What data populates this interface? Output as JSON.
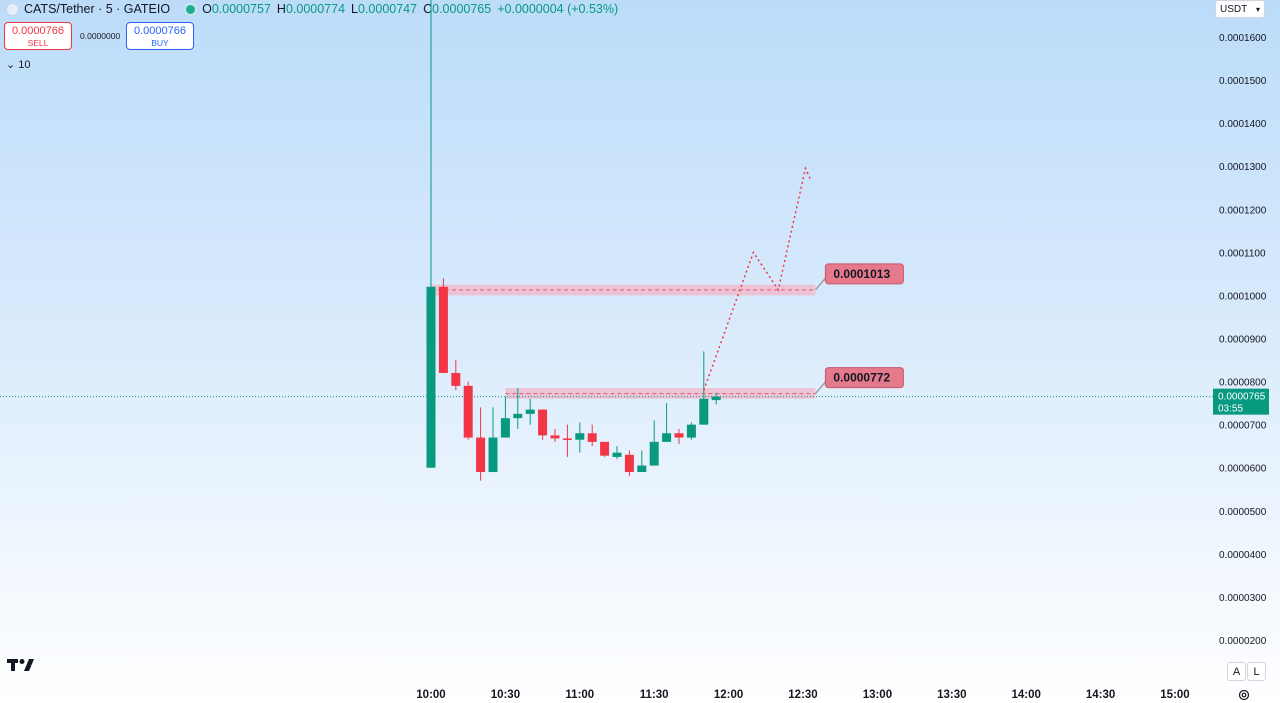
{
  "header": {
    "symbol_title": "CATS/Tether · 5 · GATEIO",
    "ohlc": {
      "o": "0.0000757",
      "h": "0.0000774",
      "l": "0.0000747",
      "c": "0.0000765",
      "change": "+0.0000004 (+0.53%)"
    },
    "sell_price": "0.0000766",
    "sell_label": "SELL",
    "buy_price": "0.0000766",
    "buy_label": "BUY",
    "spread": "0.0000000",
    "indicators_count": "10",
    "currency": "USDT"
  },
  "price_axis": {
    "ticks": [
      "0.0001600",
      "0.0001500",
      "0.0001400",
      "0.0001300",
      "0.0001200",
      "0.0001100",
      "0.0001000",
      "0.0000900",
      "0.0000800",
      "0.0000700",
      "0.0000600",
      "0.0000500",
      "0.0000400",
      "0.0000300",
      "0.0000200"
    ],
    "last_price": "0.0000765",
    "countdown": "03:55"
  },
  "time_axis": {
    "ticks": [
      "10:00",
      "10:30",
      "11:00",
      "11:30",
      "12:00",
      "12:30",
      "13:00",
      "13:30",
      "14:00",
      "14:30",
      "15:00"
    ]
  },
  "scale_buttons": {
    "auto": "A",
    "log": "L"
  },
  "colors": {
    "up": "#089981",
    "down": "#f23645",
    "zone": "#f2b6c8",
    "label_bg": "#e57a8d",
    "projection": "#f23645"
  },
  "chart_data": {
    "type": "candlestick",
    "title": "CATS/Tether · 5 · GATEIO",
    "ylim": [
      1.7e-05,
      0.00017
    ],
    "candles": [
      {
        "t": "10:00",
        "o": 6e-05,
        "h": 0.0001705,
        "l": 6e-05,
        "c": 0.000102
      },
      {
        "t": "10:05",
        "o": 0.000102,
        "h": 0.000104,
        "l": 8.2e-05,
        "c": 8.2e-05
      },
      {
        "t": "10:10",
        "o": 8.2e-05,
        "h": 8.5e-05,
        "l": 7.8e-05,
        "c": 7.9e-05
      },
      {
        "t": "10:15",
        "o": 7.9e-05,
        "h": 8e-05,
        "l": 6.65e-05,
        "c": 6.7e-05
      },
      {
        "t": "10:20",
        "o": 6.7e-05,
        "h": 7.4e-05,
        "l": 5.7e-05,
        "c": 5.9e-05
      },
      {
        "t": "10:25",
        "o": 5.9e-05,
        "h": 7.4e-05,
        "l": 5.9e-05,
        "c": 6.7e-05
      },
      {
        "t": "10:30",
        "o": 6.7e-05,
        "h": 7.65e-05,
        "l": 6.7e-05,
        "c": 7.15e-05
      },
      {
        "t": "10:35",
        "o": 7.15e-05,
        "h": 7.85e-05,
        "l": 6.9e-05,
        "c": 7.25e-05
      },
      {
        "t": "10:40",
        "o": 7.25e-05,
        "h": 7.6e-05,
        "l": 7e-05,
        "c": 7.35e-05
      },
      {
        "t": "10:45",
        "o": 7.35e-05,
        "h": 7.35e-05,
        "l": 6.65e-05,
        "c": 6.75e-05
      },
      {
        "t": "10:50",
        "o": 6.75e-05,
        "h": 6.9e-05,
        "l": 6.6e-05,
        "c": 6.68e-05
      },
      {
        "t": "10:55",
        "o": 6.68e-05,
        "h": 7e-05,
        "l": 6.25e-05,
        "c": 6.66e-05
      },
      {
        "t": "11:00",
        "o": 6.65e-05,
        "h": 7.05e-05,
        "l": 6.35e-05,
        "c": 6.8e-05
      },
      {
        "t": "11:05",
        "o": 6.8e-05,
        "h": 7e-05,
        "l": 6.5e-05,
        "c": 6.6e-05
      },
      {
        "t": "11:10",
        "o": 6.6e-05,
        "h": 6.6e-05,
        "l": 6.25e-05,
        "c": 6.28e-05
      },
      {
        "t": "11:15",
        "o": 6.25e-05,
        "h": 6.5e-05,
        "l": 6.2e-05,
        "c": 6.35e-05
      },
      {
        "t": "11:20",
        "o": 6.3e-05,
        "h": 6.4e-05,
        "l": 5.8e-05,
        "c": 5.9e-05
      },
      {
        "t": "11:25",
        "o": 5.9e-05,
        "h": 6.4e-05,
        "l": 5.9e-05,
        "c": 6.05e-05
      },
      {
        "t": "11:30",
        "o": 6.05e-05,
        "h": 7.1e-05,
        "l": 6.05e-05,
        "c": 6.6e-05
      },
      {
        "t": "11:35",
        "o": 6.6e-05,
        "h": 7.5e-05,
        "l": 6.6e-05,
        "c": 6.8e-05
      },
      {
        "t": "11:40",
        "o": 6.8e-05,
        "h": 6.9e-05,
        "l": 6.55e-05,
        "c": 6.7e-05
      },
      {
        "t": "11:45",
        "o": 6.7e-05,
        "h": 7.05e-05,
        "l": 6.65e-05,
        "c": 7e-05
      },
      {
        "t": "11:50",
        "o": 7e-05,
        "h": 8.7e-05,
        "l": 7e-05,
        "c": 7.6e-05
      },
      {
        "t": "11:55",
        "o": 7.57e-05,
        "h": 7.74e-05,
        "l": 7.47e-05,
        "c": 7.65e-05
      }
    ],
    "zones": [
      {
        "label": "0.0001013",
        "low": 0.0001,
        "high": 0.0001025,
        "line": 0.0001013,
        "from": "10:00",
        "to": "12:35"
      },
      {
        "label": "0.0000772",
        "low": 7.6e-05,
        "high": 7.85e-05,
        "line": 7.72e-05,
        "from": "10:30",
        "to": "12:35"
      }
    ],
    "projection": [
      {
        "t": "11:50",
        "v": 7.8e-05
      },
      {
        "t": "12:10",
        "v": 0.00011
      },
      {
        "t": "12:20",
        "v": 0.0001013
      },
      {
        "t": "12:31",
        "v": 0.0001295
      },
      {
        "t": "12:33",
        "v": 0.000127
      }
    ],
    "last_price_line": 7.65e-05
  }
}
